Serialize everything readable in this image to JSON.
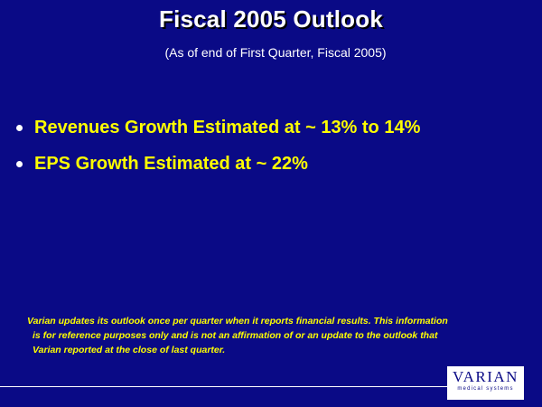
{
  "slide": {
    "title": "Fiscal 2005 Outlook",
    "subtitle": "(As of end of First Quarter, Fiscal 2005)",
    "bullets": [
      "Revenues Growth Estimated at ~ 13% to 14%",
      "EPS Growth Estimated at ~ 22%"
    ],
    "disclaimer_lines": [
      "Varian updates its outlook once per quarter when it reports financial results.  This information",
      "is for reference purposes only and is not an affirmation of or an update to the outlook that",
      "Varian reported at the close of last quarter."
    ],
    "logo": {
      "wordmark": "VARIAN",
      "tagline": "medical systems"
    }
  },
  "colors": {
    "background": "#0a0a86",
    "title": "#ffffff",
    "bullet_text": "#ffff00",
    "disclaimer_text": "#ffff00"
  }
}
